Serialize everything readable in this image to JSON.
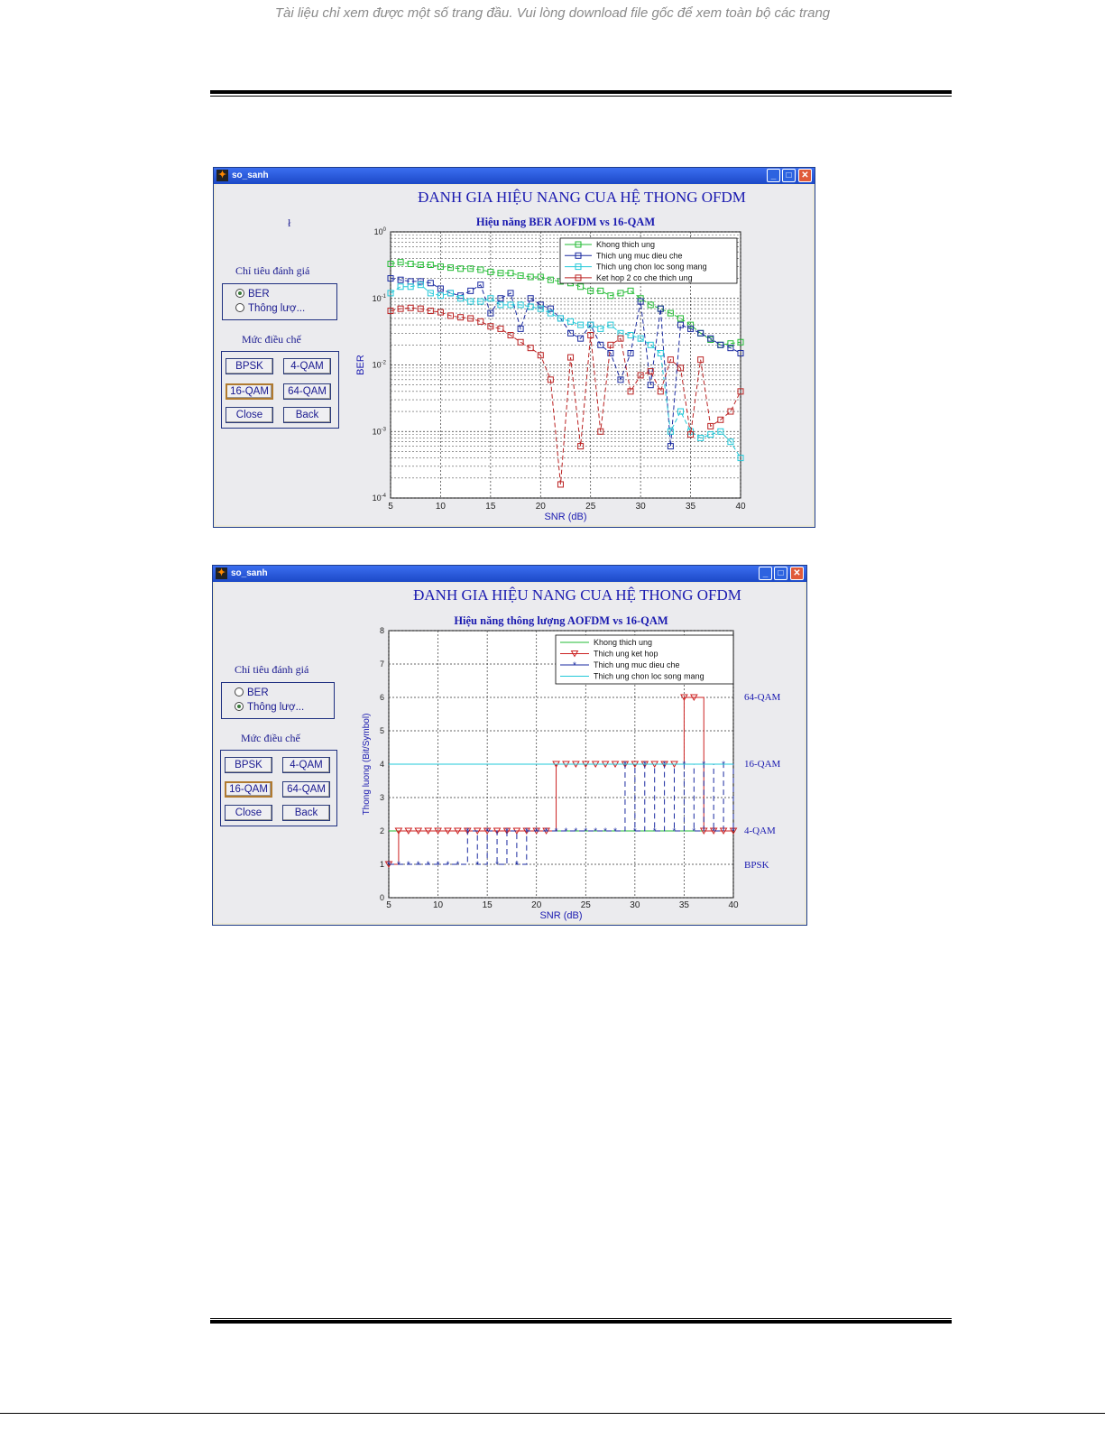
{
  "page": {
    "notice": "Tài liệu chỉ xem được một số trang đầu. Vui lòng download file gốc để xem toàn bộ các trang"
  },
  "window1": {
    "title": "so_sanh",
    "heading": "ĐANH GIA HIỆU NANG CUA HỆ THONG OFDM",
    "stray_mark": "ł",
    "criteria_label": "Chỉ tiêu đánh giá",
    "criteria_options": [
      {
        "label": "BER",
        "selected": true
      },
      {
        "label": "Thông lượ...",
        "selected": false
      }
    ],
    "modulation_label": "Mức điều chế",
    "buttons": [
      {
        "label": "BPSK",
        "selected": false
      },
      {
        "label": "4-QAM",
        "selected": false
      },
      {
        "label": "16-QAM",
        "selected": true
      },
      {
        "label": "64-QAM",
        "selected": false
      },
      {
        "label": "Close",
        "selected": false
      },
      {
        "label": "Back",
        "selected": false
      }
    ],
    "chart_data": {
      "type": "line",
      "title": "Hiệu năng BER AOFDM vs 16-QAM",
      "xlabel": "SNR (dB)",
      "ylabel": "BER",
      "xlim": [
        5,
        40
      ],
      "ylim": [
        0.0001,
        1
      ],
      "yscale": "log",
      "grid": true,
      "legend_position": "top-right",
      "xticks": [
        "5",
        "10",
        "15",
        "20",
        "25",
        "30",
        "35",
        "40"
      ],
      "yticks": [
        {
          "base": "10",
          "exp": "0"
        },
        {
          "base": "10",
          "exp": "-1"
        },
        {
          "base": "10",
          "exp": "-2"
        },
        {
          "base": "10",
          "exp": "-3"
        },
        {
          "base": "10",
          "exp": "-4"
        }
      ],
      "series": [
        {
          "name": "Khong thich ung",
          "color": "#22bb33",
          "x": [
            5,
            6,
            7,
            8,
            9,
            10,
            11,
            12,
            13,
            14,
            15,
            16,
            17,
            18,
            19,
            20,
            21,
            22,
            23,
            24,
            25,
            26,
            27,
            28,
            29,
            30,
            31,
            32,
            33,
            34,
            35,
            36,
            37,
            38,
            39,
            40
          ],
          "y": [
            0.33,
            0.35,
            0.33,
            0.32,
            0.32,
            0.3,
            0.29,
            0.28,
            0.28,
            0.27,
            0.25,
            0.24,
            0.24,
            0.22,
            0.21,
            0.21,
            0.19,
            0.18,
            0.17,
            0.15,
            0.13,
            0.13,
            0.11,
            0.12,
            0.13,
            0.1,
            0.08,
            0.07,
            0.06,
            0.05,
            0.04,
            0.03,
            0.024,
            0.02,
            0.021,
            0.022
          ]
        },
        {
          "name": "Thich ung muc dieu che",
          "color": "#1a2aa0",
          "x": [
            5,
            6,
            7,
            8,
            9,
            10,
            11,
            12,
            13,
            14,
            15,
            16,
            17,
            18,
            19,
            20,
            21,
            22,
            23,
            24,
            25,
            26,
            27,
            28,
            29,
            30,
            31,
            32,
            33,
            34,
            35,
            36,
            37,
            38,
            39,
            40
          ],
          "y": [
            0.2,
            0.19,
            0.18,
            0.18,
            0.17,
            0.14,
            0.12,
            0.11,
            0.13,
            0.16,
            0.06,
            0.1,
            0.12,
            0.035,
            0.1,
            0.08,
            0.07,
            0.05,
            0.03,
            0.025,
            0.04,
            0.02,
            0.015,
            0.006,
            0.015,
            0.09,
            0.005,
            0.07,
            0.0006,
            0.04,
            0.035,
            0.03,
            0.025,
            0.02,
            0.018,
            0.015
          ]
        },
        {
          "name": "Thich ung chon loc song mang",
          "color": "#22c8d8",
          "x": [
            5,
            6,
            7,
            8,
            9,
            10,
            11,
            12,
            13,
            14,
            15,
            16,
            17,
            18,
            19,
            20,
            21,
            22,
            23,
            24,
            25,
            26,
            27,
            28,
            29,
            30,
            31,
            32,
            33,
            34,
            35,
            36,
            37,
            38,
            39,
            40
          ],
          "y": [
            0.12,
            0.15,
            0.15,
            0.16,
            0.12,
            0.11,
            0.12,
            0.1,
            0.09,
            0.09,
            0.1,
            0.08,
            0.08,
            0.08,
            0.075,
            0.07,
            0.06,
            0.05,
            0.045,
            0.04,
            0.04,
            0.035,
            0.04,
            0.03,
            0.028,
            0.025,
            0.02,
            0.015,
            0.001,
            0.002,
            0.001,
            0.0008,
            0.0009,
            0.001,
            0.0007,
            0.0004
          ]
        },
        {
          "name": "Ket hop 2 co che thich ung",
          "color": "#bb2222",
          "x": [
            5,
            6,
            7,
            8,
            9,
            10,
            11,
            12,
            13,
            14,
            15,
            16,
            17,
            18,
            19,
            20,
            21,
            22,
            23,
            24,
            25,
            26,
            27,
            28,
            29,
            30,
            31,
            32,
            33,
            34,
            35,
            36,
            37,
            38,
            39,
            40
          ],
          "y": [
            0.065,
            0.07,
            0.072,
            0.07,
            0.065,
            0.062,
            0.055,
            0.052,
            0.05,
            0.045,
            0.038,
            0.035,
            0.028,
            0.022,
            0.018,
            0.014,
            0.006,
            0.00016,
            0.013,
            0.0006,
            0.028,
            0.001,
            0.02,
            0.025,
            0.004,
            0.007,
            0.008,
            0.004,
            0.012,
            0.009,
            0.0009,
            0.012,
            0.0012,
            0.0015,
            0.002,
            0.004
          ]
        }
      ]
    }
  },
  "window2": {
    "title": "so_sanh",
    "heading": "ĐANH GIA HIỆU NANG CUA HỆ THONG OFDM",
    "criteria_label": "Chỉ tiêu đánh giá",
    "criteria_options": [
      {
        "label": "BER",
        "selected": false
      },
      {
        "label": "Thông lượ...",
        "selected": true
      }
    ],
    "modulation_label": "Mức điều chế",
    "buttons": [
      {
        "label": "BPSK",
        "selected": false
      },
      {
        "label": "4-QAM",
        "selected": false
      },
      {
        "label": "16-QAM",
        "selected": true
      },
      {
        "label": "64-QAM",
        "selected": false
      },
      {
        "label": "Close",
        "selected": false
      },
      {
        "label": "Back",
        "selected": false
      }
    ],
    "chart_data": {
      "type": "line",
      "title": "Hiệu năng thông lượng AOFDM vs 16-QAM",
      "xlabel": "SNR (dB)",
      "ylabel": "Thong luong (Bit/Symbol)",
      "xlim": [
        5,
        40
      ],
      "ylim": [
        0,
        8
      ],
      "grid": true,
      "legend_position": "top-right",
      "xticks": [
        "5",
        "10",
        "15",
        "20",
        "25",
        "30",
        "35",
        "40"
      ],
      "yticks": [
        "0",
        "1",
        "2",
        "3",
        "4",
        "5",
        "6",
        "7",
        "8"
      ],
      "right_labels": [
        {
          "text": "64-QAM",
          "y": 6
        },
        {
          "text": "16-QAM",
          "y": 4
        },
        {
          "text": "4-QAM",
          "y": 2
        },
        {
          "text": "BPSK",
          "y": 1
        }
      ],
      "series": [
        {
          "name": "Khong thich ung",
          "color": "#22bb33",
          "style": "line",
          "x": [
            5,
            40
          ],
          "y": [
            2,
            2
          ]
        },
        {
          "name": "Thich ung ket hop",
          "color": "#cc2222",
          "style": "stair-triangle",
          "x": [
            5,
            6,
            7,
            8,
            9,
            10,
            11,
            12,
            13,
            14,
            15,
            16,
            17,
            18,
            19,
            20,
            21,
            22,
            23,
            24,
            25,
            26,
            27,
            28,
            29,
            30,
            31,
            32,
            33,
            34,
            35,
            36,
            37,
            38,
            39,
            40
          ],
          "y": [
            1,
            2,
            2,
            2,
            2,
            2,
            2,
            2,
            2,
            2,
            2,
            2,
            2,
            2,
            2,
            2,
            2,
            4,
            4,
            4,
            4,
            4,
            4,
            4,
            4,
            4,
            4,
            4,
            4,
            4,
            6,
            6,
            2,
            2,
            2,
            2
          ]
        },
        {
          "name": "Thich ung muc dieu che",
          "color": "#1a2aa0",
          "style": "stair-star",
          "x": [
            5,
            6,
            7,
            8,
            9,
            10,
            11,
            12,
            13,
            14,
            15,
            16,
            17,
            18,
            19,
            20,
            21,
            22,
            23,
            24,
            25,
            26,
            27,
            28,
            29,
            30,
            31,
            32,
            33,
            34,
            35,
            36,
            37,
            38,
            39,
            40
          ],
          "y": [
            1,
            1,
            1,
            1,
            1,
            1,
            1,
            1,
            2,
            1,
            2,
            1,
            2,
            1,
            2,
            2,
            2,
            2,
            2,
            2,
            2,
            2,
            2,
            2,
            4,
            2,
            4,
            2,
            4,
            2,
            4,
            2,
            4,
            2,
            4,
            2
          ]
        },
        {
          "name": "Thich ung chon loc song mang",
          "color": "#22c8d8",
          "style": "line",
          "x": [
            5,
            40
          ],
          "y": [
            4,
            4
          ]
        }
      ]
    }
  }
}
